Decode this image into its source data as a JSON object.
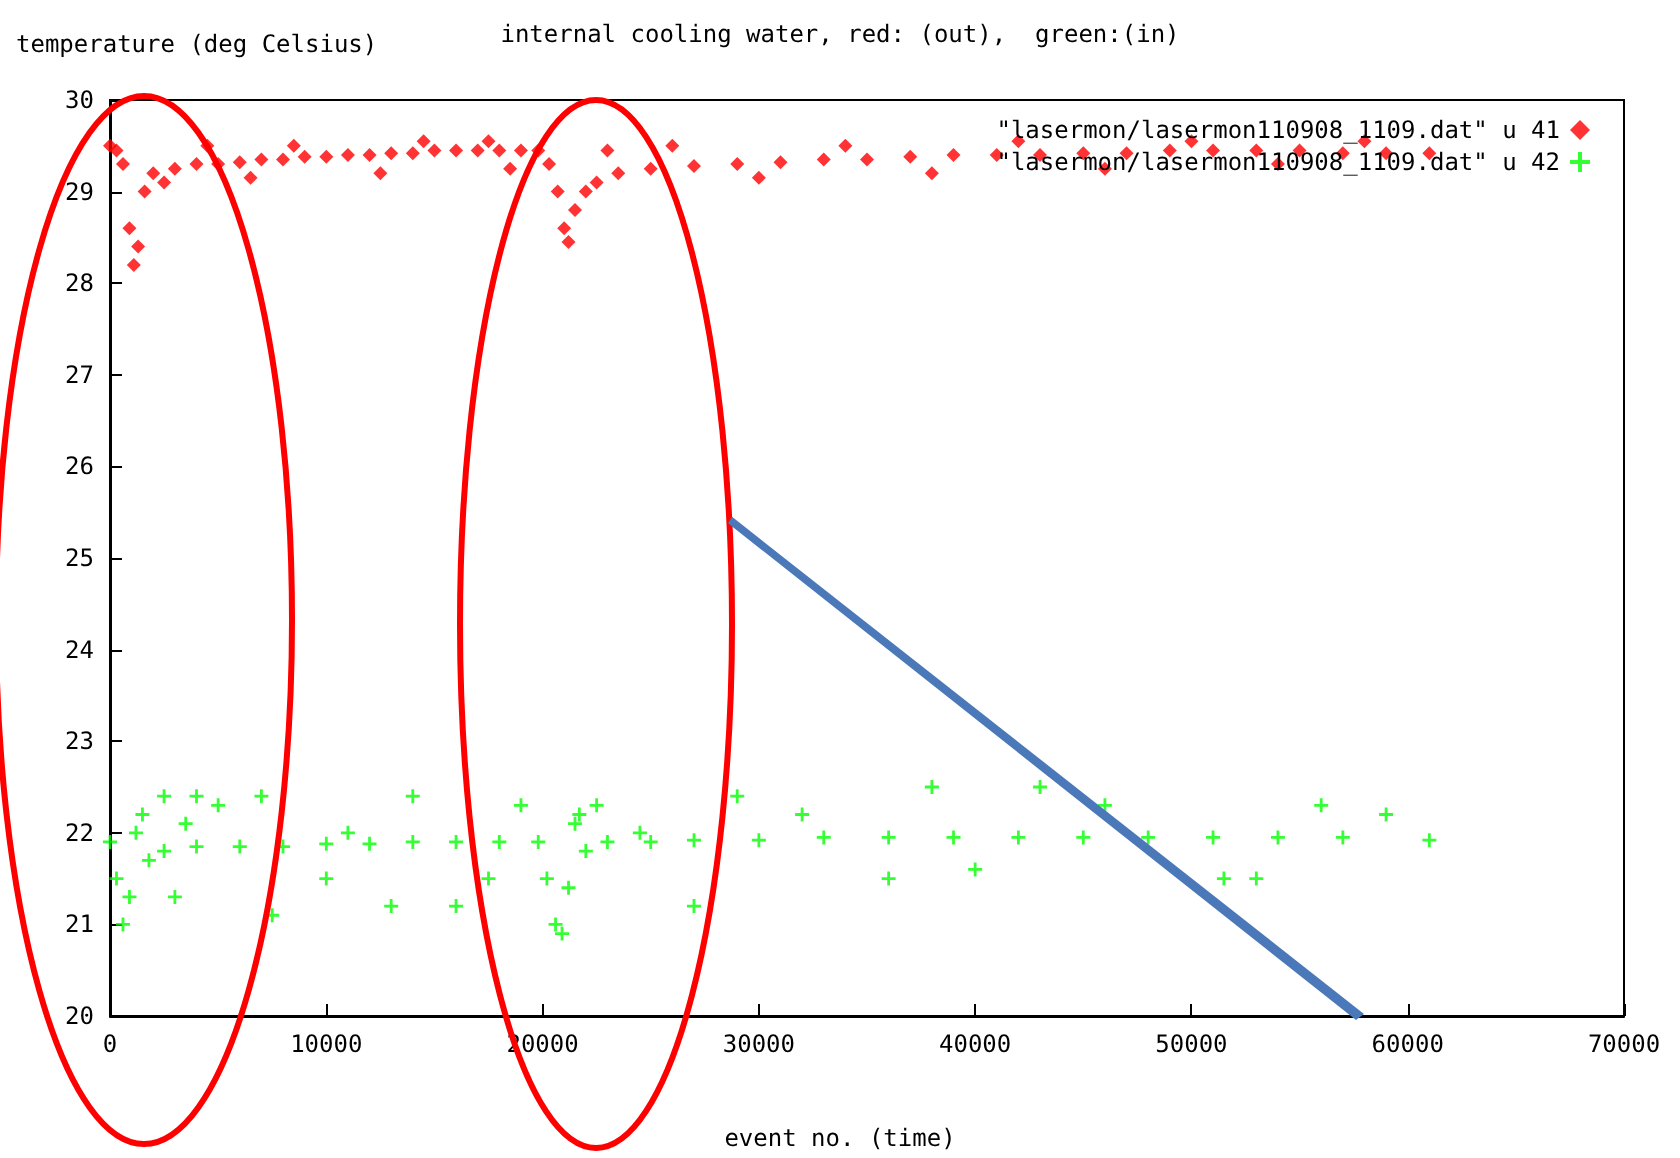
{
  "chart_data": {
    "type": "scatter",
    "title": "internal cooling water, red: (out),  green:(in)",
    "xlabel": "event no. (time)",
    "ylabel": "temperature (deg Celsius)",
    "xlim": [
      0,
      70000
    ],
    "xticks": [
      0,
      10000,
      20000,
      30000,
      40000,
      50000,
      60000,
      70000
    ],
    "ylim": [
      20,
      30
    ],
    "yticks": [
      20,
      21,
      22,
      23,
      24,
      25,
      26,
      27,
      28,
      29,
      30
    ],
    "grid": false,
    "legend": "top right",
    "series": [
      {
        "name": "\"lasermon/lasermon110908_1109.dat\" u 41",
        "color": "#ff0000",
        "marker": "diamond",
        "x": [
          0,
          300,
          600,
          900,
          1100,
          1300,
          1600,
          2000,
          3000,
          4000,
          5000,
          6000,
          7000,
          8000,
          9000,
          10000,
          11000,
          12000,
          13000,
          14000,
          15000,
          16000,
          17000,
          18000,
          19000,
          19800,
          20300,
          20700,
          21000,
          21200,
          21500,
          22000,
          22500,
          23500,
          25000,
          27000,
          29000,
          31000,
          33000,
          35000,
          37000,
          39000,
          41000,
          43000,
          45000,
          47000,
          49000,
          51000,
          53000,
          55000,
          57000,
          59000,
          61000,
          2500,
          4500,
          6500,
          8500,
          12500,
          14500,
          17500,
          18500,
          23000,
          26000,
          30000,
          34000,
          38000,
          42000,
          46000,
          50000,
          54000,
          58000
        ],
        "values": [
          29.5,
          29.45,
          29.3,
          28.6,
          28.2,
          28.4,
          29.0,
          29.2,
          29.25,
          29.3,
          29.3,
          29.32,
          29.35,
          29.35,
          29.38,
          29.38,
          29.4,
          29.4,
          29.42,
          29.42,
          29.45,
          29.45,
          29.45,
          29.45,
          29.45,
          29.45,
          29.3,
          29.0,
          28.6,
          28.45,
          28.8,
          29.0,
          29.1,
          29.2,
          29.25,
          29.28,
          29.3,
          29.32,
          29.35,
          29.35,
          29.38,
          29.4,
          29.4,
          29.4,
          29.42,
          29.42,
          29.45,
          29.45,
          29.45,
          29.45,
          29.42,
          29.42,
          29.42,
          29.1,
          29.5,
          29.15,
          29.5,
          29.2,
          29.55,
          29.55,
          29.25,
          29.45,
          29.5,
          29.15,
          29.5,
          29.2,
          29.55,
          29.25,
          29.55,
          29.3,
          29.55
        ]
      },
      {
        "name": "\"lasermon/lasermon110908_1109.dat\" u 42",
        "color": "#00ff00",
        "marker": "cross",
        "x": [
          0,
          300,
          600,
          900,
          1200,
          1500,
          1800,
          2500,
          4000,
          6000,
          8000,
          10000,
          12000,
          14000,
          16000,
          18000,
          19800,
          20200,
          20600,
          20900,
          21200,
          21500,
          21700,
          22000,
          23000,
          25000,
          27000,
          30000,
          33000,
          36000,
          39000,
          42000,
          45000,
          48000,
          51000,
          54000,
          57000,
          61000,
          2500,
          3000,
          3500,
          4000,
          5000,
          7000,
          7500,
          10000,
          11000,
          13000,
          14000,
          16000,
          17500,
          19000,
          22500,
          24500,
          27000,
          29000,
          32000,
          36000,
          38000,
          40000,
          43000,
          46000,
          51500,
          53000,
          56000,
          59000
        ],
        "values": [
          21.9,
          21.5,
          21.0,
          21.3,
          22.0,
          22.2,
          21.7,
          21.8,
          21.85,
          21.85,
          21.85,
          21.88,
          21.88,
          21.9,
          21.9,
          21.9,
          21.9,
          21.5,
          21.0,
          20.9,
          21.4,
          22.1,
          22.2,
          21.8,
          21.9,
          21.9,
          21.92,
          21.92,
          21.95,
          21.95,
          21.95,
          21.95,
          21.95,
          21.95,
          21.95,
          21.95,
          21.95,
          21.92,
          22.4,
          21.3,
          22.1,
          22.4,
          22.3,
          22.4,
          21.1,
          21.5,
          22.0,
          21.2,
          22.4,
          21.2,
          21.5,
          22.3,
          22.3,
          22.0,
          21.2,
          22.4,
          22.2,
          21.5,
          22.5,
          21.6,
          22.5,
          22.3,
          21.5,
          21.5,
          22.3,
          22.2
        ]
      }
    ]
  }
}
